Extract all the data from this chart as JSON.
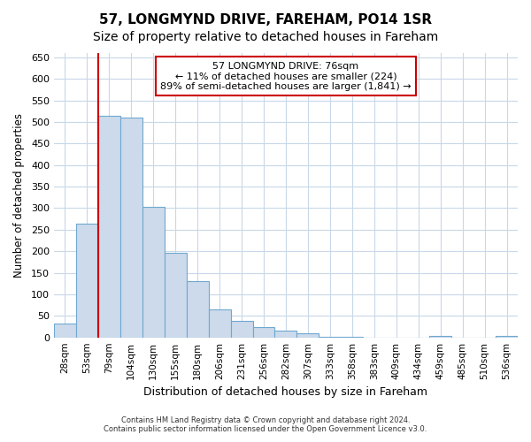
{
  "title": "57, LONGMYND DRIVE, FAREHAM, PO14 1SR",
  "subtitle": "Size of property relative to detached houses in Fareham",
  "xlabel": "Distribution of detached houses by size in Fareham",
  "ylabel": "Number of detached properties",
  "categories": [
    "28sqm",
    "53sqm",
    "79sqm",
    "104sqm",
    "130sqm",
    "155sqm",
    "180sqm",
    "206sqm",
    "231sqm",
    "256sqm",
    "282sqm",
    "307sqm",
    "333sqm",
    "358sqm",
    "383sqm",
    "409sqm",
    "434sqm",
    "459sqm",
    "485sqm",
    "510sqm",
    "536sqm"
  ],
  "values": [
    32,
    263,
    515,
    510,
    302,
    197,
    131,
    65,
    39,
    24,
    16,
    10,
    2,
    2,
    0,
    0,
    0,
    4,
    0,
    0,
    4
  ],
  "bar_color": "#ccdaeb",
  "bar_edge_color": "#6fa8d0",
  "property_line_bar_index": 2,
  "line_color": "#cc0000",
  "annotation_text": "57 LONGMYND DRIVE: 76sqm\n← 11% of detached houses are smaller (224)\n89% of semi-detached houses are larger (1,841) →",
  "box_color": "#ffffff",
  "box_edge_color": "#cc0000",
  "ylim": [
    0,
    660
  ],
  "yticks": [
    0,
    50,
    100,
    150,
    200,
    250,
    300,
    350,
    400,
    450,
    500,
    550,
    600,
    650
  ],
  "footer_line1": "Contains HM Land Registry data © Crown copyright and database right 2024.",
  "footer_line2": "Contains public sector information licensed under the Open Government Licence v3.0.",
  "bg_color": "#ffffff",
  "plot_bg_color": "#ffffff",
  "grid_color": "#c8d8e8",
  "title_fontsize": 11,
  "subtitle_fontsize": 10
}
